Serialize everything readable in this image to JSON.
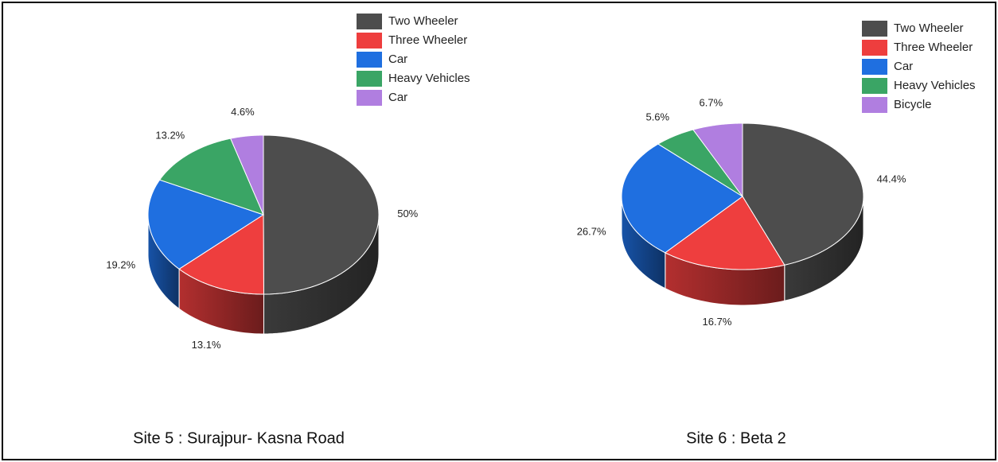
{
  "chart_data": [
    {
      "type": "pie",
      "title": "Site 5 : Surajpur- Kasna Road",
      "categories": [
        "Two Wheeler",
        "Three Wheeler",
        "Car",
        "Heavy Vehicles",
        "Car"
      ],
      "values": [
        50,
        13.1,
        19.2,
        13.2,
        4.6
      ],
      "value_labels": [
        "50%",
        "13.1%",
        "19.2%",
        "13.2%",
        "4.6%"
      ],
      "colors": [
        "#4d4d4d",
        "#ee3e3e",
        "#1f6fe0",
        "#3aa565",
        "#b07ee0"
      ]
    },
    {
      "type": "pie",
      "title": "Site 6 : Beta 2",
      "categories": [
        "Two Wheeler",
        "Three Wheeler",
        "Car",
        "Heavy Vehicles",
        "Bicycle"
      ],
      "values": [
        44.4,
        16.7,
        26.7,
        5.6,
        6.7
      ],
      "value_labels": [
        "44.4%",
        "16.7%",
        "26.7%",
        "5.6%",
        "6.7%"
      ],
      "colors": [
        "#4d4d4d",
        "#ee3e3e",
        "#1f6fe0",
        "#3aa565",
        "#b07ee0"
      ]
    }
  ]
}
